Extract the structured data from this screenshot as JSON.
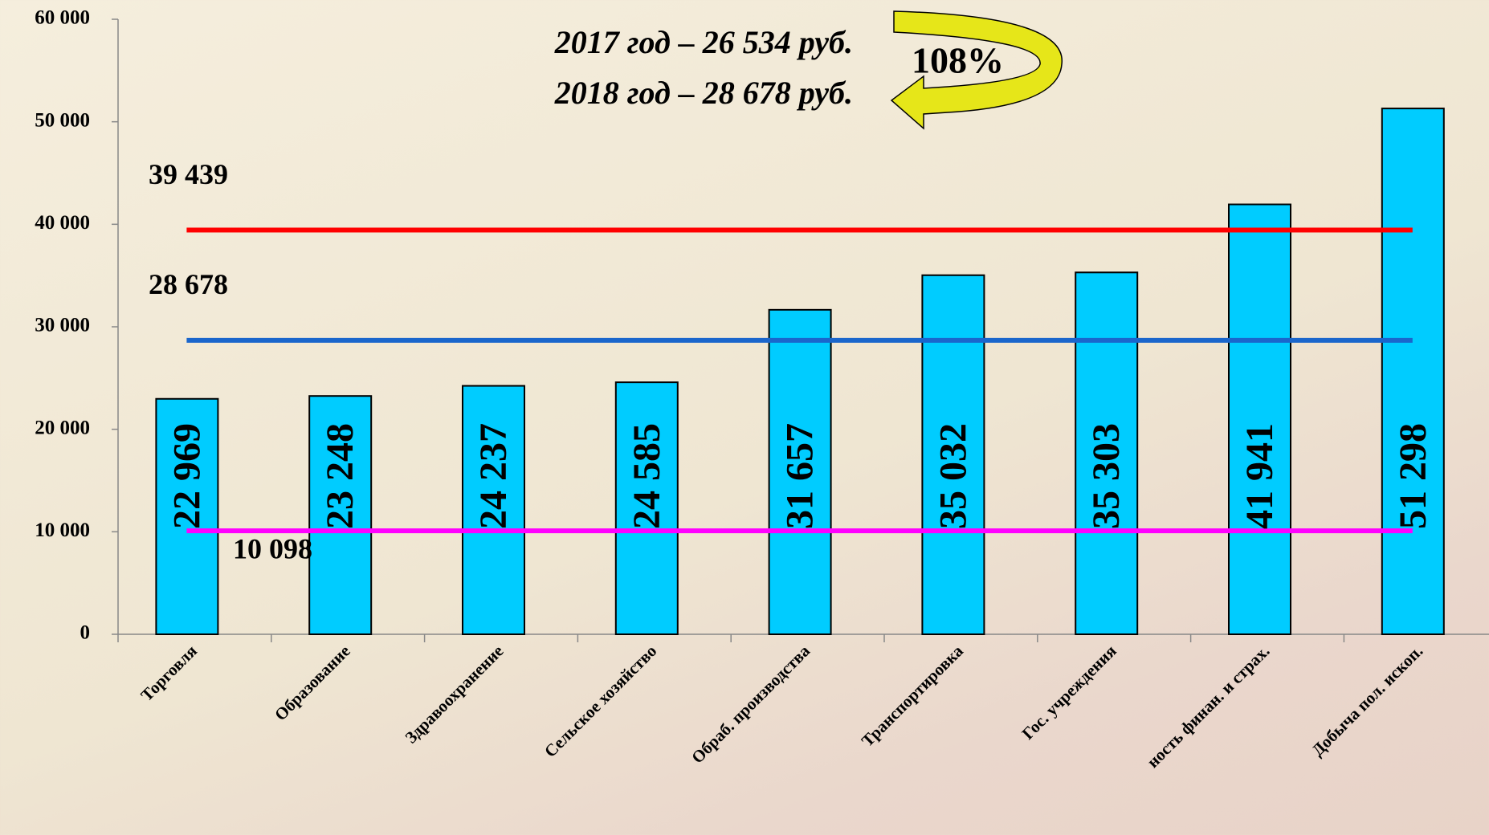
{
  "chart_data": {
    "type": "bar",
    "categories": [
      "Торговля",
      "Образование",
      "Здравоохранение",
      "Сельское хозяйство",
      "Обраб. производства",
      "Транспортировка",
      "Гос. учреждения",
      "ность финан. и страх.",
      "Добыча пол. ископ."
    ],
    "values": [
      22969,
      23248,
      24237,
      24585,
      31657,
      35032,
      35303,
      41941,
      51298
    ],
    "value_labels": [
      "22 969",
      "23 248",
      "24 237",
      "24 585",
      "31 657",
      "35 032",
      "35 303",
      "41 941",
      "51 298"
    ],
    "color": "#00ccff",
    "ylim": [
      0,
      60000
    ],
    "yticks": [
      0,
      {
        "value": 10000,
        "label": "10 000"
      },
      {
        "value": 20000,
        "label": "20 000"
      },
      {
        "value": 30000,
        "label": "30 000"
      },
      {
        "value": 40000,
        "label": "40 000"
      },
      {
        "value": 50000,
        "label": "50 000"
      },
      {
        "value": 60000,
        "label": "60 000"
      }
    ],
    "reference_lines": [
      {
        "value": 39439,
        "label": "39 439",
        "color": "#ff0000"
      },
      {
        "value": 28678,
        "label": "28 678",
        "color": "#1a66cc"
      },
      {
        "value": 10098,
        "label": "10 098",
        "color": "#ff00ff"
      }
    ],
    "annotations": [
      "2017 год – 26 534 руб.",
      "2018 год – 28 678 руб.",
      "108%"
    ]
  }
}
